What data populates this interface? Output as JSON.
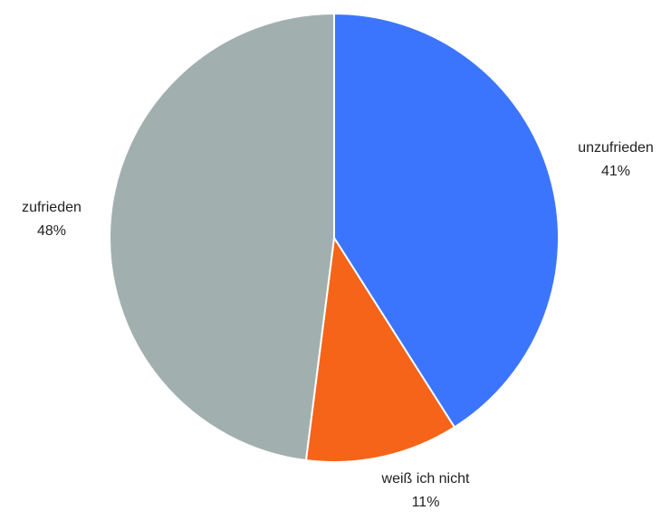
{
  "chart_data": {
    "type": "pie",
    "slices": [
      {
        "label": "unzufrieden",
        "value": 41,
        "value_label": "41%",
        "color": "#3C75FD"
      },
      {
        "label": "weiß ich nicht",
        "value": 11,
        "value_label": "11%",
        "color": "#F56418"
      },
      {
        "label": "zufrieden",
        "value": 48,
        "value_label": "48%",
        "color": "#A1B0AF"
      }
    ],
    "start_angle": "12 o'clock",
    "direction": "clockwise",
    "slice_border_color": "#FFFFFF",
    "legend": "none"
  }
}
